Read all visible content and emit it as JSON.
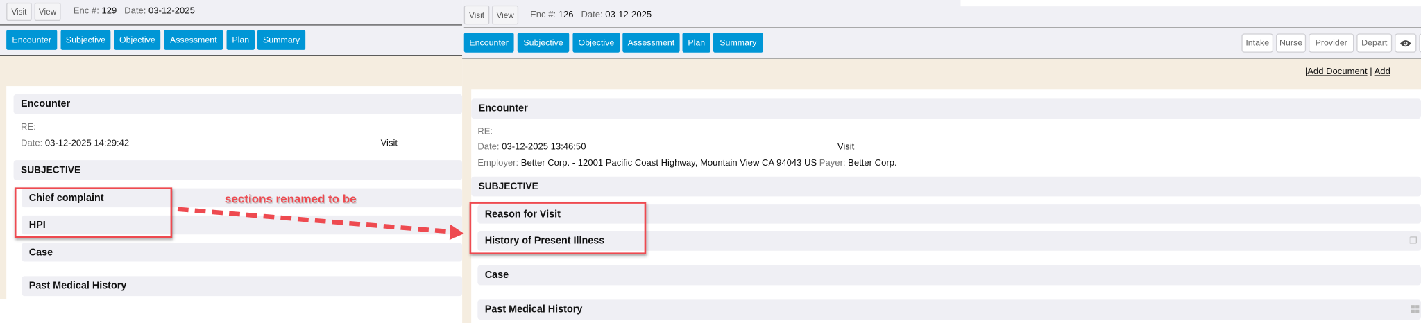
{
  "left": {
    "top_buttons": [
      "Visit",
      "View"
    ],
    "enc_label": "Enc #:",
    "enc_value": "129",
    "date_label": "Date:",
    "date_value": "03-12-2025",
    "tabs": [
      "Encounter",
      "Subjective",
      "Objective",
      "Assessment",
      "Plan",
      "Summary"
    ],
    "encounter_title": "Encounter",
    "re_label": "RE:",
    "datetime_label": "Date:",
    "datetime_value": "03-12-2025 14:29:42",
    "visit_type": "Visit",
    "subjective_title": "SUBJECTIVE",
    "sections": [
      "Chief complaint",
      "HPI",
      "Case",
      "Past Medical History"
    ]
  },
  "annotation": {
    "text": "sections renamed to be",
    "color": "#ee4a50"
  },
  "right": {
    "top_buttons": [
      "Visit",
      "View"
    ],
    "enc_label": "Enc #:",
    "enc_value": "126",
    "date_label": "Date:",
    "date_value": "03-12-2025",
    "tabs": [
      "Encounter",
      "Subjective",
      "Objective",
      "Assessment",
      "Plan",
      "Summary"
    ],
    "stage_buttons": [
      "Intake",
      "Nurse",
      "Provider",
      "Depart"
    ],
    "eye_icon": "eye-icon",
    "links_sep": "|",
    "links": [
      "Add Document",
      "Add"
    ],
    "encounter_title": "Encounter",
    "re_label": "RE:",
    "datetime_label": "Date:",
    "datetime_value": "03-12-2025 13:46:50",
    "visit_type": "Visit",
    "employer_label": "Employer:",
    "employer_value": "Better Corp. - 12001 Pacific Coast Highway, Mountain View CA 94043 US",
    "payer_label": "Payer:",
    "payer_value": "Better Corp.",
    "subjective_title": "SUBJECTIVE",
    "sections": [
      "Reason for Visit",
      "History of Present Illness",
      "Case",
      "Past Medical History"
    ]
  },
  "colors": {
    "tab_blue": "#0096d6",
    "toolbar_gray": "#f0f0f5",
    "beige": "#f5ede0",
    "annotation_red": "#ee4a50"
  }
}
